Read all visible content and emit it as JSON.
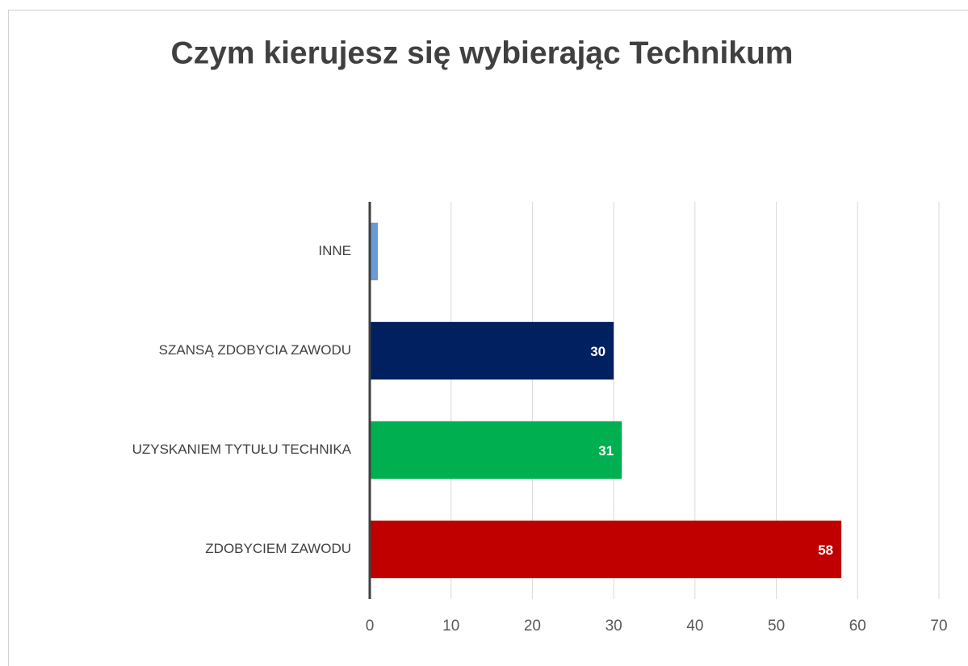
{
  "chart_data": {
    "type": "hbar",
    "title": "Czym kierujesz się wybierając Technikum",
    "categories": [
      "INNE",
      "SZANSĄ ZDOBYCIA ZAWODU",
      "UZYSKANIEM TYTUŁU TECHNIKA",
      "ZDOBYCIEM ZAWODU"
    ],
    "values": [
      1,
      30,
      31,
      58
    ],
    "value_labels": [
      null,
      "30",
      "31",
      "58"
    ],
    "colors": [
      "#6a9bd6",
      "#002060",
      "#00b050",
      "#c00000"
    ],
    "xlim": [
      0,
      70
    ],
    "xticks": [
      0,
      10,
      20,
      30,
      40,
      50,
      60,
      70
    ],
    "grid": true
  }
}
